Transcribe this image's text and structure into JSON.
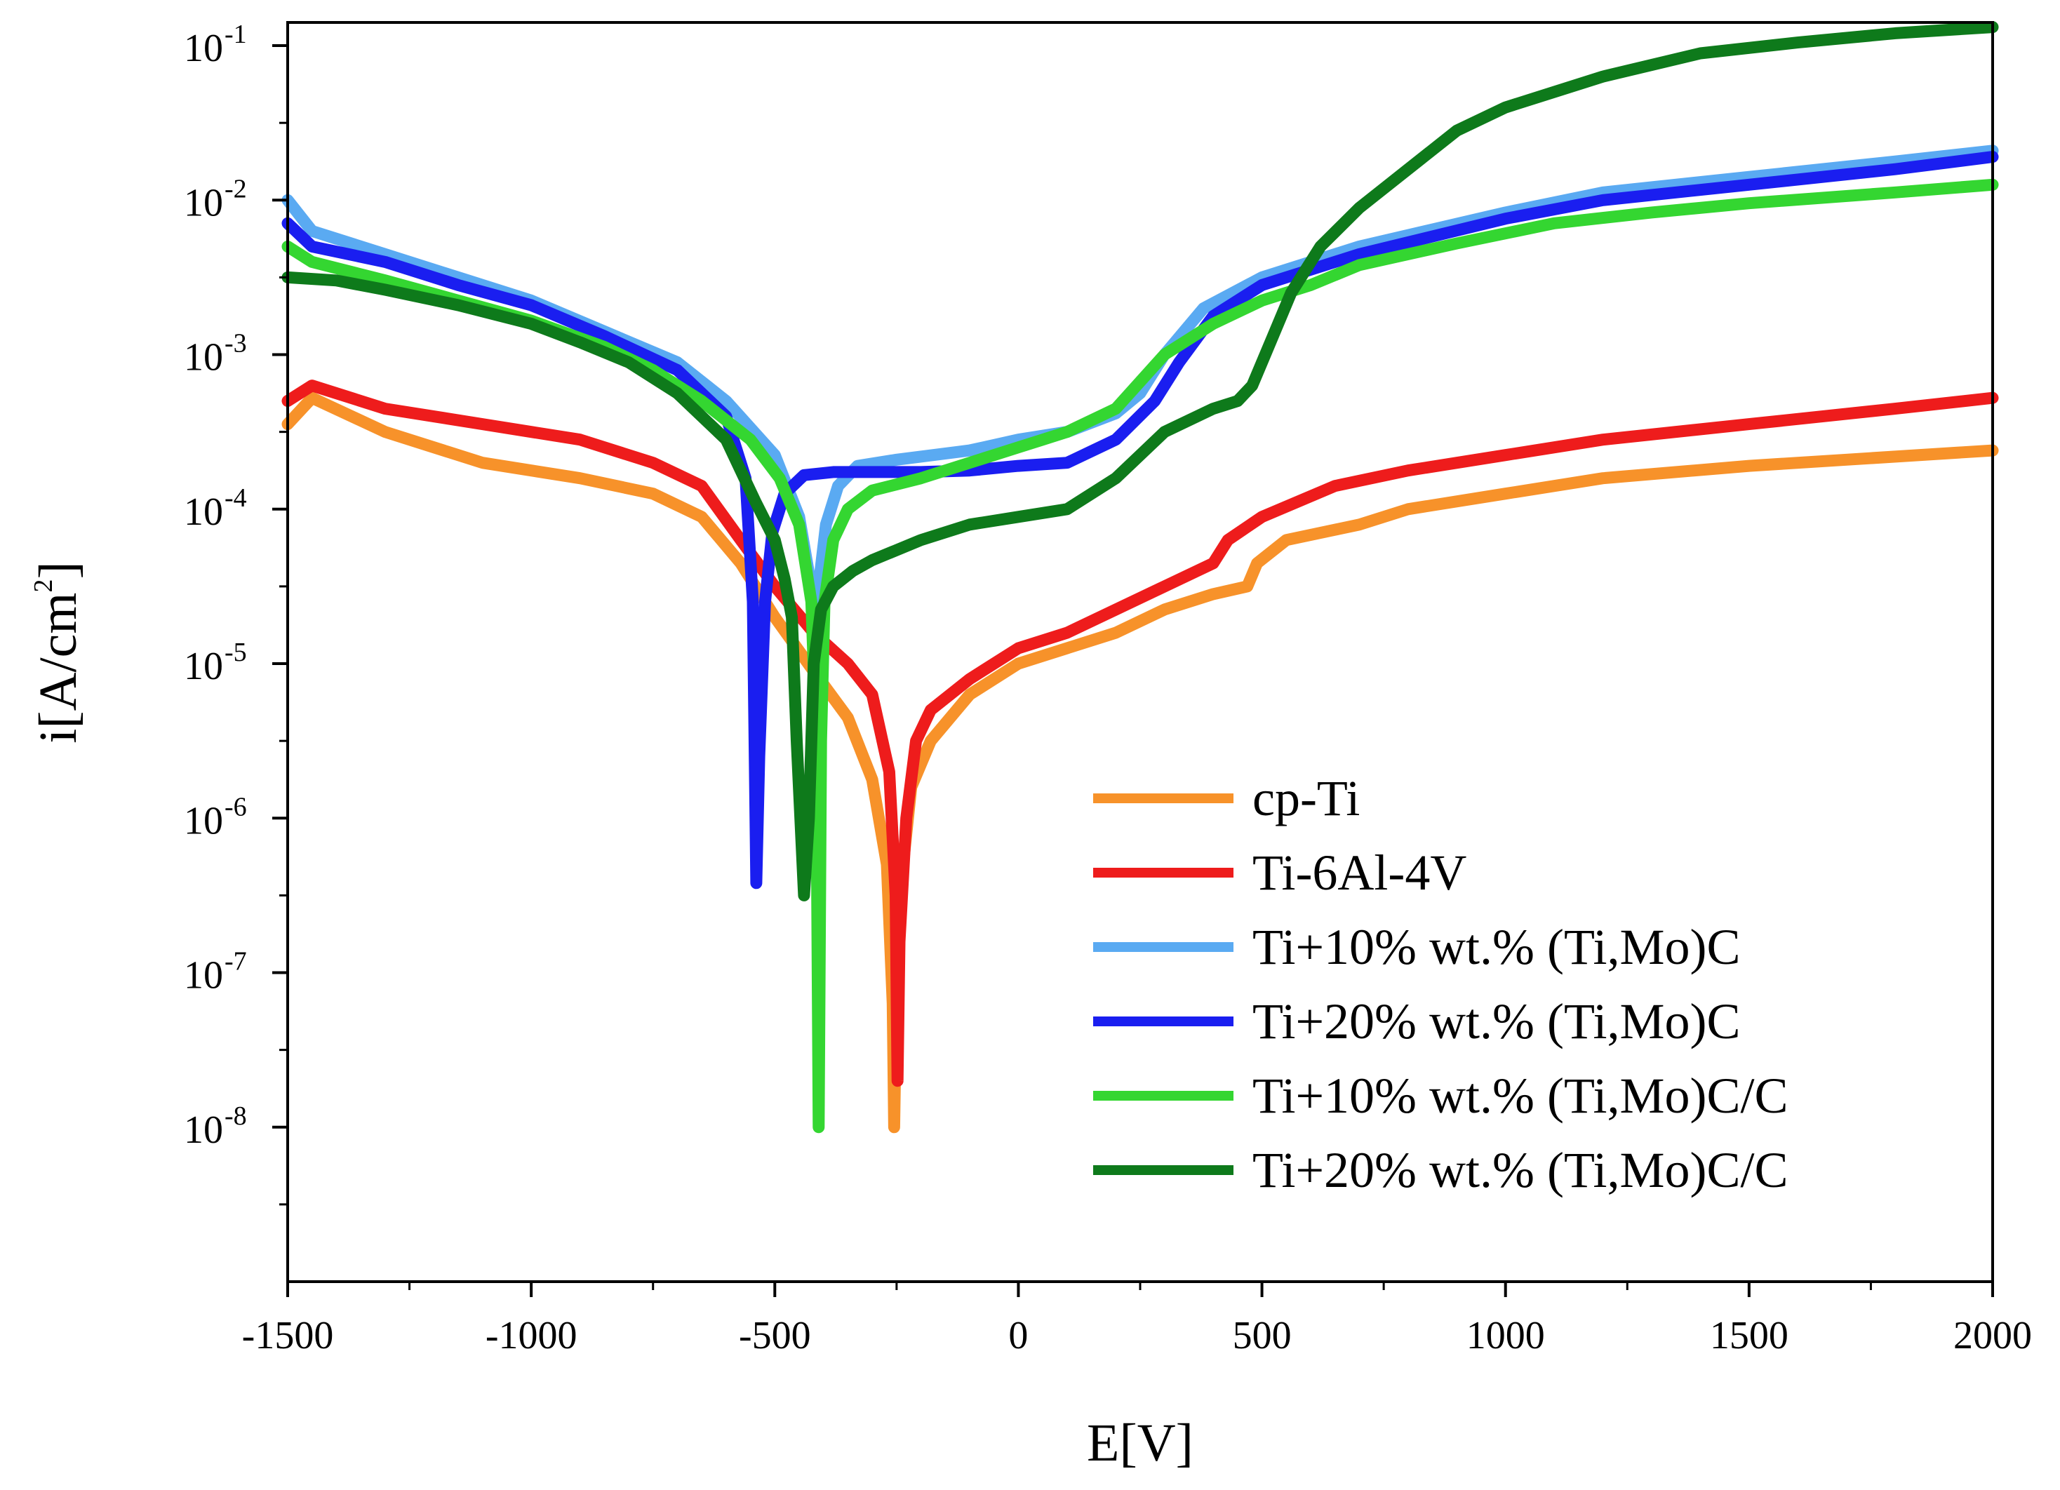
{
  "chart_data": {
    "type": "line",
    "title": "",
    "xlabel": "E[V]",
    "ylabel": "i[A/cm2]",
    "ylabel_base": "i[A/cm",
    "ylabel_sup": "2",
    "ylabel_end": "]",
    "xlim": [
      -1500,
      2000
    ],
    "ylim_log10": [
      -9,
      -0.85
    ],
    "yscale": "log",
    "x_ticks": [
      {
        "value": -1500,
        "label": "-1500"
      },
      {
        "value": -1000,
        "label": "-1000"
      },
      {
        "value": -500,
        "label": "-500"
      },
      {
        "value": 0,
        "label": "0"
      },
      {
        "value": 500,
        "label": "500"
      },
      {
        "value": 1000,
        "label": "1000"
      },
      {
        "value": 1500,
        "label": "1500"
      },
      {
        "value": 2000,
        "label": "2000"
      }
    ],
    "y_ticks": [
      {
        "exp": -1,
        "base": "10",
        "sup": "-1"
      },
      {
        "exp": -2,
        "base": "10",
        "sup": "-2"
      },
      {
        "exp": -3,
        "base": "10",
        "sup": "-3"
      },
      {
        "exp": -4,
        "base": "10",
        "sup": "-4"
      },
      {
        "exp": -5,
        "base": "10",
        "sup": "-5"
      },
      {
        "exp": -6,
        "base": "10",
        "sup": "-6"
      },
      {
        "exp": -7,
        "base": "10",
        "sup": "-7"
      },
      {
        "exp": -8,
        "base": "10",
        "sup": "-8"
      }
    ],
    "legend_position": "bottom-right",
    "series": [
      {
        "name": "cp-Ti",
        "color": "#f7922a",
        "points": [
          [
            -1500,
            -3.45
          ],
          [
            -1450,
            -3.28
          ],
          [
            -1300,
            -3.5
          ],
          [
            -1100,
            -3.7
          ],
          [
            -900,
            -3.8
          ],
          [
            -750,
            -3.9
          ],
          [
            -650,
            -4.05
          ],
          [
            -570,
            -4.35
          ],
          [
            -500,
            -4.7
          ],
          [
            -420,
            -5.05
          ],
          [
            -350,
            -5.35
          ],
          [
            -300,
            -5.75
          ],
          [
            -270,
            -6.3
          ],
          [
            -258,
            -7.2
          ],
          [
            -255,
            -8.0
          ],
          [
            -250,
            -7.0
          ],
          [
            -240,
            -6.4
          ],
          [
            -220,
            -5.8
          ],
          [
            -180,
            -5.5
          ],
          [
            -100,
            -5.2
          ],
          [
            0,
            -5.0
          ],
          [
            100,
            -4.9
          ],
          [
            200,
            -4.8
          ],
          [
            300,
            -4.65
          ],
          [
            400,
            -4.55
          ],
          [
            470,
            -4.5
          ],
          [
            490,
            -4.35
          ],
          [
            550,
            -4.2
          ],
          [
            700,
            -4.1
          ],
          [
            800,
            -4.0
          ],
          [
            1000,
            -3.9
          ],
          [
            1200,
            -3.8
          ],
          [
            1500,
            -3.72
          ],
          [
            1700,
            -3.68
          ],
          [
            2000,
            -3.62
          ]
        ]
      },
      {
        "name": "Ti-6Al-4V",
        "color": "#ee1c1c",
        "points": [
          [
            -1500,
            -3.3
          ],
          [
            -1450,
            -3.2
          ],
          [
            -1300,
            -3.35
          ],
          [
            -1100,
            -3.45
          ],
          [
            -900,
            -3.55
          ],
          [
            -750,
            -3.7
          ],
          [
            -650,
            -3.85
          ],
          [
            -570,
            -4.2
          ],
          [
            -500,
            -4.5
          ],
          [
            -420,
            -4.8
          ],
          [
            -350,
            -5.0
          ],
          [
            -300,
            -5.2
          ],
          [
            -265,
            -5.7
          ],
          [
            -252,
            -6.5
          ],
          [
            -248,
            -7.7
          ],
          [
            -244,
            -6.8
          ],
          [
            -230,
            -6.0
          ],
          [
            -210,
            -5.5
          ],
          [
            -180,
            -5.3
          ],
          [
            -100,
            -5.1
          ],
          [
            0,
            -4.9
          ],
          [
            100,
            -4.8
          ],
          [
            200,
            -4.65
          ],
          [
            300,
            -4.5
          ],
          [
            400,
            -4.35
          ],
          [
            430,
            -4.2
          ],
          [
            500,
            -4.05
          ],
          [
            650,
            -3.85
          ],
          [
            800,
            -3.75
          ],
          [
            1000,
            -3.65
          ],
          [
            1200,
            -3.55
          ],
          [
            1500,
            -3.45
          ],
          [
            1800,
            -3.35
          ],
          [
            2000,
            -3.28
          ]
        ]
      },
      {
        "name": "Ti+10% wt.% (Ti,Mo)C",
        "color": "#5aaaf2",
        "points": [
          [
            -1500,
            -2.0
          ],
          [
            -1450,
            -2.2
          ],
          [
            -1300,
            -2.35
          ],
          [
            -1150,
            -2.5
          ],
          [
            -1000,
            -2.65
          ],
          [
            -850,
            -2.85
          ],
          [
            -700,
            -3.05
          ],
          [
            -600,
            -3.3
          ],
          [
            -500,
            -3.65
          ],
          [
            -450,
            -4.05
          ],
          [
            -420,
            -4.6
          ],
          [
            -410,
            -4.5
          ],
          [
            -395,
            -4.1
          ],
          [
            -370,
            -3.85
          ],
          [
            -330,
            -3.72
          ],
          [
            -250,
            -3.68
          ],
          [
            -100,
            -3.62
          ],
          [
            0,
            -3.55
          ],
          [
            100,
            -3.5
          ],
          [
            200,
            -3.38
          ],
          [
            250,
            -3.25
          ],
          [
            300,
            -3.0
          ],
          [
            380,
            -2.7
          ],
          [
            500,
            -2.5
          ],
          [
            700,
            -2.3
          ],
          [
            1000,
            -2.08
          ],
          [
            1200,
            -1.95
          ],
          [
            1500,
            -1.85
          ],
          [
            1800,
            -1.75
          ],
          [
            2000,
            -1.68
          ]
        ]
      },
      {
        "name": "Ti+20% wt.% (Ti,Mo)C",
        "color": "#1a1ef0",
        "points": [
          [
            -1500,
            -2.15
          ],
          [
            -1450,
            -2.3
          ],
          [
            -1300,
            -2.4
          ],
          [
            -1150,
            -2.55
          ],
          [
            -1000,
            -2.68
          ],
          [
            -850,
            -2.88
          ],
          [
            -700,
            -3.1
          ],
          [
            -600,
            -3.4
          ],
          [
            -560,
            -3.8
          ],
          [
            -545,
            -4.6
          ],
          [
            -538,
            -6.42
          ],
          [
            -532,
            -5.6
          ],
          [
            -520,
            -4.6
          ],
          [
            -505,
            -4.15
          ],
          [
            -480,
            -3.9
          ],
          [
            -440,
            -3.78
          ],
          [
            -380,
            -3.76
          ],
          [
            -300,
            -3.76
          ],
          [
            -200,
            -3.76
          ],
          [
            -100,
            -3.75
          ],
          [
            0,
            -3.72
          ],
          [
            100,
            -3.7
          ],
          [
            200,
            -3.55
          ],
          [
            280,
            -3.3
          ],
          [
            330,
            -3.05
          ],
          [
            400,
            -2.75
          ],
          [
            500,
            -2.55
          ],
          [
            700,
            -2.35
          ],
          [
            1000,
            -2.12
          ],
          [
            1200,
            -2.0
          ],
          [
            1500,
            -1.9
          ],
          [
            1800,
            -1.8
          ],
          [
            2000,
            -1.72
          ]
        ]
      },
      {
        "name": "Ti+10% wt.% (Ti,Mo)C/C",
        "color": "#34d631",
        "points": [
          [
            -1500,
            -2.3
          ],
          [
            -1450,
            -2.4
          ],
          [
            -1300,
            -2.52
          ],
          [
            -1150,
            -2.65
          ],
          [
            -1000,
            -2.78
          ],
          [
            -850,
            -2.95
          ],
          [
            -750,
            -3.1
          ],
          [
            -650,
            -3.3
          ],
          [
            -550,
            -3.55
          ],
          [
            -490,
            -3.8
          ],
          [
            -450,
            -4.1
          ],
          [
            -425,
            -4.6
          ],
          [
            -415,
            -5.5
          ],
          [
            -410,
            -8.0
          ],
          [
            -405,
            -5.5
          ],
          [
            -398,
            -4.6
          ],
          [
            -380,
            -4.2
          ],
          [
            -350,
            -4.0
          ],
          [
            -300,
            -3.88
          ],
          [
            -200,
            -3.8
          ],
          [
            -100,
            -3.7
          ],
          [
            0,
            -3.6
          ],
          [
            100,
            -3.5
          ],
          [
            200,
            -3.35
          ],
          [
            300,
            -3.0
          ],
          [
            400,
            -2.8
          ],
          [
            500,
            -2.65
          ],
          [
            600,
            -2.55
          ],
          [
            700,
            -2.42
          ],
          [
            900,
            -2.28
          ],
          [
            1100,
            -2.15
          ],
          [
            1300,
            -2.08
          ],
          [
            1500,
            -2.02
          ],
          [
            1800,
            -1.95
          ],
          [
            2000,
            -1.9
          ]
        ]
      },
      {
        "name": "Ti+20% wt.% (Ti,Mo)C/C",
        "color": "#0e7a1b",
        "points": [
          [
            -1500,
            -2.5
          ],
          [
            -1400,
            -2.52
          ],
          [
            -1300,
            -2.58
          ],
          [
            -1150,
            -2.68
          ],
          [
            -1000,
            -2.8
          ],
          [
            -900,
            -2.92
          ],
          [
            -800,
            -3.05
          ],
          [
            -700,
            -3.25
          ],
          [
            -600,
            -3.55
          ],
          [
            -540,
            -3.95
          ],
          [
            -500,
            -4.2
          ],
          [
            -480,
            -4.45
          ],
          [
            -465,
            -4.7
          ],
          [
            -455,
            -5.5
          ],
          [
            -440,
            -6.5
          ],
          [
            -430,
            -6.0
          ],
          [
            -420,
            -5.0
          ],
          [
            -405,
            -4.65
          ],
          [
            -380,
            -4.5
          ],
          [
            -340,
            -4.4
          ],
          [
            -300,
            -4.33
          ],
          [
            -200,
            -4.2
          ],
          [
            -100,
            -4.1
          ],
          [
            0,
            -4.05
          ],
          [
            100,
            -4.0
          ],
          [
            200,
            -3.8
          ],
          [
            300,
            -3.5
          ],
          [
            400,
            -3.35
          ],
          [
            450,
            -3.3
          ],
          [
            480,
            -3.2
          ],
          [
            520,
            -2.9
          ],
          [
            560,
            -2.6
          ],
          [
            620,
            -2.3
          ],
          [
            700,
            -2.05
          ],
          [
            800,
            -1.8
          ],
          [
            900,
            -1.55
          ],
          [
            1000,
            -1.4
          ],
          [
            1200,
            -1.2
          ],
          [
            1400,
            -1.05
          ],
          [
            1600,
            -0.98
          ],
          [
            1800,
            -0.92
          ],
          [
            2000,
            -0.88
          ]
        ]
      }
    ]
  }
}
